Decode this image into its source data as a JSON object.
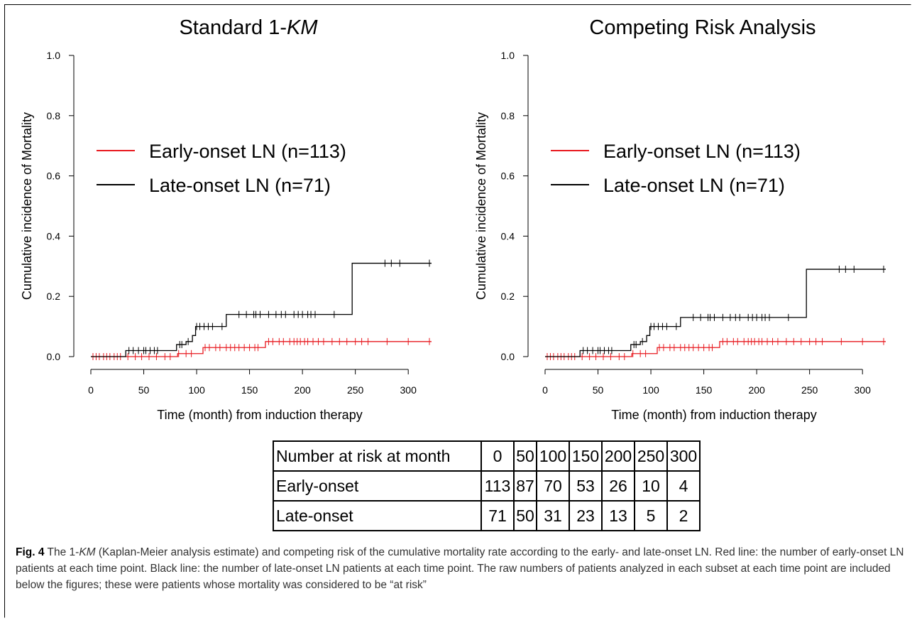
{
  "charts": {
    "chart_data": [
      {
        "type": "line",
        "title": "Standard 1-",
        "title_italic": "KM",
        "xlabel": "Time (month) from induction therapy",
        "ylabel": "Cumulative incidence of Mortality",
        "xlim": [
          0,
          320
        ],
        "ylim": [
          0,
          1
        ],
        "xticks": [
          "0",
          "50",
          "100",
          "150",
          "200",
          "250",
          "300"
        ],
        "yticks": [
          "0.0",
          "0.2",
          "0.4",
          "0.6",
          "0.8",
          "1.0"
        ],
        "legend_position": "upper-left",
        "series": [
          {
            "name": "Early-onset LN (n=113)",
            "color": "#e8191f",
            "steps": [
              [
                0,
                0.0
              ],
              [
                80,
                0.0
              ],
              [
                82,
                0.01
              ],
              [
                104,
                0.01
              ],
              [
                106,
                0.03
              ],
              [
                162,
                0.03
              ],
              [
                165,
                0.05
              ],
              [
                322,
                0.05
              ]
            ],
            "censor_x": [
              2,
              5,
              8,
              12,
              15,
              18,
              22,
              25,
              28,
              35,
              42,
              48,
              55,
              62,
              70,
              75,
              83,
              90,
              95,
              108,
              112,
              118,
              122,
              128,
              132,
              136,
              140,
              145,
              150,
              155,
              158,
              168,
              172,
              178,
              182,
              188,
              192,
              195,
              198,
              202,
              205,
              210,
              215,
              220,
              228,
              235,
              242,
              250,
              256,
              262,
              280,
              300,
              320
            ]
          },
          {
            "name": "Late-onset LN (n=71)",
            "color": "#000000",
            "steps": [
              [
                0,
                0.0
              ],
              [
                32,
                0.0
              ],
              [
                33,
                0.02
              ],
              [
                80,
                0.02
              ],
              [
                81,
                0.04
              ],
              [
                88,
                0.04
              ],
              [
                90,
                0.05
              ],
              [
                95,
                0.05
              ],
              [
                96,
                0.07
              ],
              [
                98,
                0.07
              ],
              [
                99,
                0.1
              ],
              [
                127,
                0.1
              ],
              [
                128,
                0.14
              ],
              [
                246,
                0.14
              ],
              [
                247,
                0.31
              ],
              [
                322,
                0.31
              ]
            ],
            "censor_x": [
              36,
              40,
              45,
              50,
              52,
              56,
              60,
              63,
              84,
              86,
              92,
              100,
              103,
              107,
              111,
              115,
              124,
              140,
              147,
              154,
              156,
              160,
              168,
              175,
              180,
              184,
              192,
              196,
              200,
              205,
              208,
              212,
              230,
              278,
              284,
              292,
              320
            ]
          }
        ]
      },
      {
        "type": "line",
        "title": "Competing Risk Analysis",
        "title_italic": "",
        "xlabel": "Time (month) from induction therapy",
        "ylabel": "Cumulative incidence of Mortality",
        "xlim": [
          0,
          320
        ],
        "ylim": [
          0,
          1
        ],
        "xticks": [
          "0",
          "50",
          "100",
          "150",
          "200",
          "250",
          "300"
        ],
        "yticks": [
          "0.0",
          "0.2",
          "0.4",
          "0.6",
          "0.8",
          "1.0"
        ],
        "legend_position": "upper-left",
        "series": [
          {
            "name": "Early-onset LN (n=113)",
            "color": "#e8191f",
            "steps": [
              [
                0,
                0.0
              ],
              [
                80,
                0.0
              ],
              [
                82,
                0.01
              ],
              [
                104,
                0.01
              ],
              [
                106,
                0.03
              ],
              [
                162,
                0.03
              ],
              [
                165,
                0.05
              ],
              [
                322,
                0.05
              ]
            ],
            "censor_x": [
              2,
              5,
              8,
              12,
              15,
              18,
              22,
              25,
              28,
              35,
              42,
              48,
              55,
              62,
              70,
              75,
              83,
              90,
              95,
              108,
              112,
              118,
              122,
              128,
              132,
              136,
              140,
              145,
              150,
              155,
              158,
              168,
              172,
              178,
              182,
              188,
              192,
              195,
              198,
              202,
              205,
              210,
              215,
              220,
              228,
              235,
              242,
              250,
              256,
              262,
              280,
              300,
              320
            ]
          },
          {
            "name": "Late-onset LN (n=71)",
            "color": "#000000",
            "steps": [
              [
                0,
                0.0
              ],
              [
                32,
                0.0
              ],
              [
                33,
                0.02
              ],
              [
                80,
                0.02
              ],
              [
                81,
                0.04
              ],
              [
                88,
                0.04
              ],
              [
                90,
                0.05
              ],
              [
                95,
                0.05
              ],
              [
                96,
                0.07
              ],
              [
                98,
                0.07
              ],
              [
                99,
                0.1
              ],
              [
                127,
                0.1
              ],
              [
                128,
                0.13
              ],
              [
                246,
                0.13
              ],
              [
                247,
                0.29
              ],
              [
                322,
                0.29
              ]
            ],
            "censor_x": [
              36,
              40,
              45,
              50,
              52,
              56,
              60,
              63,
              84,
              86,
              92,
              100,
              103,
              107,
              111,
              115,
              124,
              140,
              147,
              154,
              156,
              160,
              168,
              175,
              180,
              184,
              192,
              196,
              200,
              205,
              208,
              212,
              230,
              278,
              284,
              292,
              320
            ]
          }
        ]
      }
    ]
  },
  "risk_table": {
    "header": [
      "Number at risk at month",
      "0",
      "50",
      "100",
      "150",
      "200",
      "250",
      "300"
    ],
    "rows": [
      [
        "Early-onset",
        "113",
        "87",
        "70",
        "53",
        "26",
        "10",
        "4"
      ],
      [
        "Late-onset",
        "71",
        "50",
        "31",
        "23",
        "13",
        "5",
        "2"
      ]
    ]
  },
  "caption": {
    "label": "Fig. 4",
    "text_1": " The 1-",
    "text_italic": "KM",
    "text_2": " (Kaplan-Meier analysis estimate) and competing risk of the cumulative mortality rate according to the early- and late-onset LN. Red line: the number of early-onset LN patients at each time point. Black line: the number of late-onset LN patients at each time point. The raw numbers of patients analyzed in each subset at each time point are included below the figures; these were patients whose mortality was considered to be “at risk”"
  }
}
